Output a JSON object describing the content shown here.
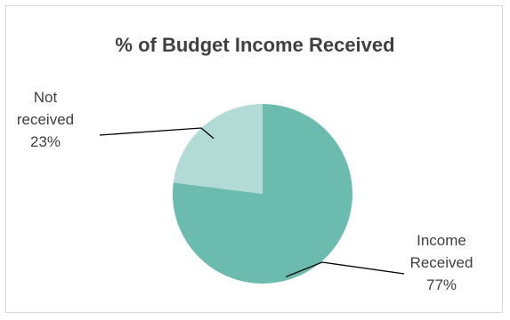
{
  "chart_data": {
    "type": "pie",
    "title": "% of Budget Income Received",
    "slices": [
      {
        "label_lines": [
          "Income",
          "Received"
        ],
        "value": 77,
        "value_label": "77%",
        "color": "#6bbcae"
      },
      {
        "label_lines": [
          "Not",
          "received"
        ],
        "value": 23,
        "value_label": "23%",
        "color": "#b3dbd5"
      }
    ],
    "legend": "none",
    "data_labels": "outside-with-leader-lines"
  }
}
